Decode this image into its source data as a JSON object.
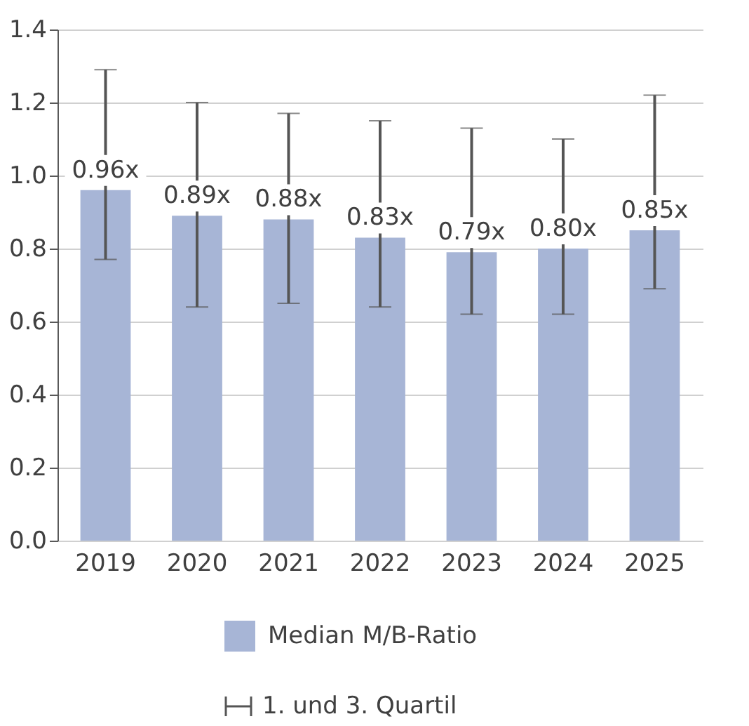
{
  "chart_data": {
    "type": "bar",
    "categories": [
      "2019",
      "2020",
      "2021",
      "2022",
      "2023",
      "2024",
      "2025"
    ],
    "series": [
      {
        "name": "Median M/B-Ratio",
        "color": "#a7b5d6",
        "values": [
          0.96,
          0.89,
          0.88,
          0.83,
          0.79,
          0.8,
          0.85
        ],
        "value_labels": [
          "0.96x",
          "0.89x",
          "0.88x",
          "0.83x",
          "0.79x",
          "0.80x",
          "0.85x"
        ],
        "errors": [
          [
            0.77,
            1.29
          ],
          [
            0.64,
            1.2
          ],
          [
            0.65,
            1.17
          ],
          [
            0.64,
            1.15
          ],
          [
            0.62,
            1.13
          ],
          [
            0.62,
            1.1
          ],
          [
            0.69,
            1.22
          ]
        ]
      }
    ],
    "ylim": [
      0,
      1.4
    ],
    "yticks": [
      {
        "value": 0,
        "label": "0.0"
      },
      {
        "value": 0.2,
        "label": "0.2"
      },
      {
        "value": 0.4,
        "label": "0.4"
      },
      {
        "value": 0.6,
        "label": "0.6"
      },
      {
        "value": 0.8,
        "label": "0.8"
      },
      {
        "value": 1.0,
        "label": "1.0"
      },
      {
        "value": 1.2,
        "label": "1.2"
      },
      {
        "value": 1.4,
        "label": "1.4"
      }
    ],
    "grid": "y",
    "legend": "bottom",
    "annotations": [
      "1. und 3. Quartil"
    ]
  }
}
